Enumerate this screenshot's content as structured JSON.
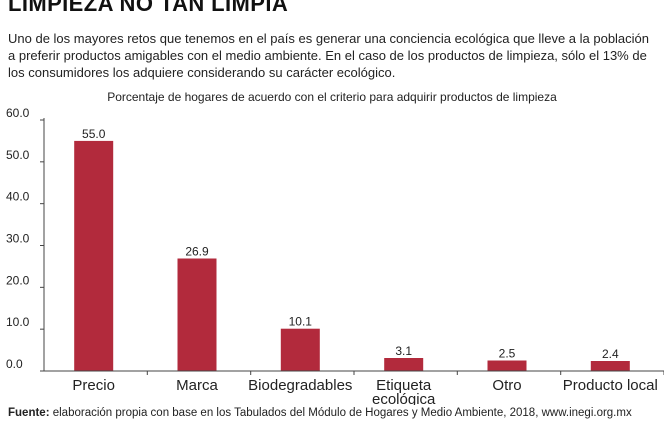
{
  "header": {
    "title": "LIMPIEZA NO TAN LIMPIA"
  },
  "intro": {
    "text": "Uno de los mayores retos que tenemos en el país es generar una conciencia ecológica que lleve a la población a preferir productos amigables con el medio ambiente. En el caso de los productos de limpieza, sólo el 13% de los consumidores los adquiere considerando su carácter ecológico."
  },
  "footer": {
    "source_label": "Fuente:",
    "source_text": "elaboración propia con base en los Tabulados del Módulo de Hogares y Medio Ambiente, 2018, www.inegi.org.mx"
  },
  "colors": {
    "bar": "#b22a3c",
    "axis": "#444444"
  },
  "chart_data": {
    "type": "bar",
    "title": "Porcentaje de hogares de acuerdo con el criterio para adquirir productos de limpieza",
    "xlabel": "",
    "ylabel": "",
    "categories": [
      "Precio",
      "Marca",
      "Biodegradables",
      "Etiqueta ecológica",
      "Otro",
      "Producto local"
    ],
    "category_lines": [
      [
        "Precio"
      ],
      [
        "Marca"
      ],
      [
        "Biodegradables"
      ],
      [
        "Etiqueta",
        "ecológica"
      ],
      [
        "Otro"
      ],
      [
        "Producto local"
      ]
    ],
    "values": [
      55.0,
      26.9,
      10.1,
      3.1,
      2.5,
      2.4
    ],
    "value_labels": [
      "55.0",
      "26.9",
      "10.1",
      "3.1",
      "2.5",
      "2.4"
    ],
    "yticks": [
      0.0,
      10.0,
      20.0,
      30.0,
      40.0,
      50.0,
      60.0
    ],
    "ytick_labels": [
      "0.0",
      "10.0",
      "20.0",
      "30.0",
      "40.0",
      "50.0",
      "60.0"
    ],
    "ylim": [
      0,
      60
    ],
    "grid": false,
    "legend": "none"
  }
}
